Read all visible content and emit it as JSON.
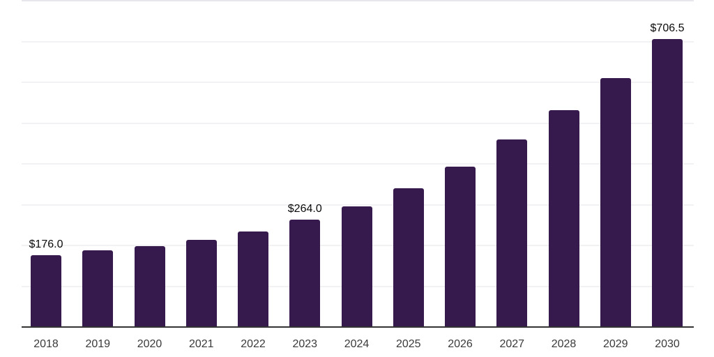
{
  "chart_data": {
    "type": "bar",
    "title": "",
    "xlabel": "",
    "ylabel": "",
    "categories": [
      "2018",
      "2019",
      "2020",
      "2021",
      "2022",
      "2023",
      "2024",
      "2025",
      "2026",
      "2027",
      "2028",
      "2029",
      "2030"
    ],
    "values": [
      176.0,
      188,
      198,
      213,
      235,
      264.0,
      295,
      341,
      394,
      459,
      531,
      611,
      706.5
    ],
    "bar_labels": {
      "2018": "$176.0",
      "2023": "$264.0",
      "2030": "$706.5"
    },
    "ylim": [
      0,
      800
    ],
    "gridline_step": 100,
    "grid": true,
    "y_axis_tick_labels_visible": false,
    "legend_position": "none"
  },
  "colors": {
    "background": "#ffffff",
    "bar": "#36194d",
    "axis_line": "#333333",
    "gridline": "#f2f2f5",
    "top_gridline": "#e7e7ec",
    "tick_label": "#3a3a3a",
    "value_label": "#0a0a0a"
  }
}
